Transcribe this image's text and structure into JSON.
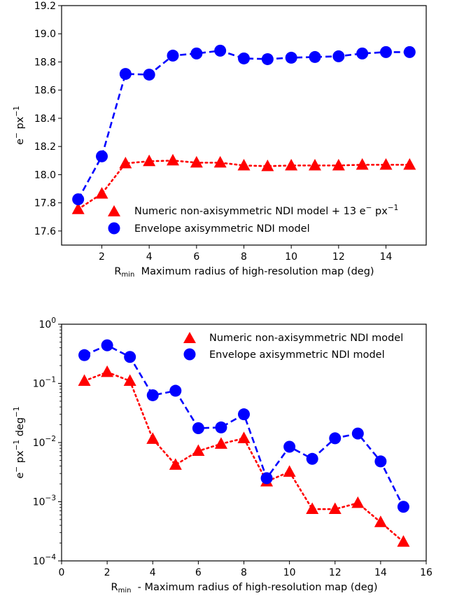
{
  "chart_data": [
    {
      "type": "line",
      "x": [
        1,
        2,
        3,
        4,
        5,
        6,
        7,
        8,
        9,
        10,
        11,
        12,
        13,
        14,
        15
      ],
      "xlim": [
        0.3,
        15.7
      ],
      "ylim": [
        17.5,
        19.2
      ],
      "yscale": "linear",
      "xticks": [
        2,
        4,
        6,
        8,
        10,
        12,
        14
      ],
      "yticks": [
        17.6,
        17.8,
        18.0,
        18.2,
        18.4,
        18.6,
        18.8,
        19.0,
        19.2
      ],
      "xlabel": {
        "prefix": "R",
        "sub": "min",
        "rest": "  Maximum radius of high-resolution map (deg)"
      },
      "ylabel": {
        "base": "e",
        "sup1": "−",
        "mid": " px",
        "sup2": "−1"
      },
      "legend_position": "lower right",
      "grid": false,
      "series": [
        {
          "name": "Numeric non-axisymmetric NDI model + 13 e",
          "name_sup1": "−",
          "name_mid": " px",
          "name_sup2": "−1",
          "color": "#ff0000",
          "marker": "triangle",
          "linestyle": "dotted",
          "values": [
            17.755,
            17.865,
            18.08,
            18.095,
            18.1,
            18.085,
            18.085,
            18.065,
            18.06,
            18.065,
            18.065,
            18.065,
            18.07,
            18.07,
            18.07
          ]
        },
        {
          "name": "Envelope axisymmetric NDI model",
          "color": "#0000ff",
          "marker": "circle",
          "linestyle": "dashed",
          "values": [
            17.825,
            18.13,
            18.715,
            18.71,
            18.845,
            18.86,
            18.88,
            18.825,
            18.82,
            18.83,
            18.835,
            18.84,
            18.86,
            18.87,
            18.87
          ]
        }
      ]
    },
    {
      "type": "line",
      "x": [
        1,
        2,
        3,
        4,
        5,
        6,
        7,
        8,
        9,
        10,
        11,
        12,
        13,
        14,
        15
      ],
      "xlim": [
        0,
        16
      ],
      "ylim": [
        0.0001,
        1
      ],
      "yscale": "log",
      "xticks": [
        0,
        2,
        4,
        6,
        8,
        10,
        12,
        14,
        16
      ],
      "yticks": [
        {
          "value": 1,
          "mantissa": "10",
          "exp": "0"
        },
        {
          "value": 0.1,
          "mantissa": "10",
          "exp": "−1"
        },
        {
          "value": 0.01,
          "mantissa": "10",
          "exp": "−2"
        },
        {
          "value": 0.001,
          "mantissa": "10",
          "exp": "−3"
        },
        {
          "value": 0.0001,
          "mantissa": "10",
          "exp": "−4"
        }
      ],
      "xlabel": {
        "prefix": "R",
        "sub": "min",
        "rest": "  - Maximum radius of high-resolution map (deg)"
      },
      "ylabel": {
        "base": "e",
        "sup1": "−",
        "mid": " px",
        "sup2": "−1",
        "mid2": " deg",
        "sup3": "−1"
      },
      "legend_position": "upper right",
      "grid": false,
      "series": [
        {
          "name": "Numeric non-axisymmetric NDI model",
          "color": "#ff0000",
          "marker": "triangle",
          "linestyle": "dotted",
          "values": [
            0.11,
            0.155,
            0.11,
            0.0115,
            0.0042,
            0.0072,
            0.0095,
            0.0118,
            0.0022,
            0.0032,
            0.00075,
            0.00075,
            0.00095,
            0.00045,
            0.00021
          ]
        },
        {
          "name": "Envelope axisymmetric NDI model",
          "color": "#0000ff",
          "marker": "circle",
          "linestyle": "dashed",
          "values": [
            0.3,
            0.44,
            0.28,
            0.063,
            0.075,
            0.0175,
            0.018,
            0.03,
            0.0025,
            0.0085,
            0.0053,
            0.0118,
            0.0142,
            0.0048,
            0.00082
          ]
        }
      ]
    }
  ]
}
